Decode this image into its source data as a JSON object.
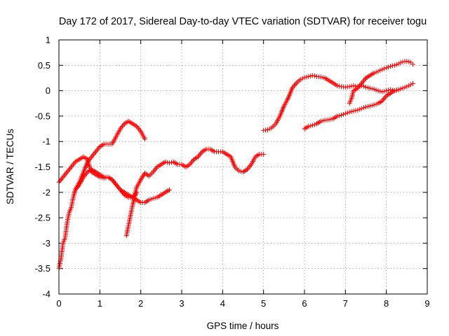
{
  "chart_data": {
    "type": "scatter",
    "title": "Day 172 of 2017, Sidereal Day-to-day VTEC variation (SDTVAR) for receiver togu",
    "xlabel": "GPS time / hours",
    "ylabel": "SDTVAR / TECUs",
    "xlim": [
      0,
      9
    ],
    "ylim": [
      -4,
      1
    ],
    "x_ticks": [
      0,
      1,
      2,
      3,
      4,
      5,
      6,
      7,
      8,
      9
    ],
    "x_tick_labels": [
      "0",
      "1",
      "2",
      "3",
      "4",
      "5",
      "6",
      "7",
      "8",
      "9"
    ],
    "y_ticks": [
      1,
      0.5,
      0,
      -0.5,
      -1,
      -1.5,
      -2,
      -2.5,
      -3,
      -3.5,
      -4
    ],
    "y_tick_labels": [
      "1",
      "0.5",
      "0",
      "-0.5",
      "-1",
      "-1.5",
      "-2",
      "-2.5",
      "-3",
      "-3.5",
      "-4"
    ],
    "grid": true,
    "marker": "plus",
    "color": "#ff0000",
    "series": [
      {
        "points": [
          [
            0.0,
            -1.8
          ],
          [
            0.1,
            -1.7
          ],
          [
            0.2,
            -1.6
          ],
          [
            0.3,
            -1.5
          ],
          [
            0.4,
            -1.4
          ],
          [
            0.5,
            -1.35
          ],
          [
            0.6,
            -1.3
          ],
          [
            0.7,
            -1.35
          ],
          [
            0.75,
            -1.5
          ],
          [
            0.8,
            -1.6
          ],
          [
            0.9,
            -1.65
          ],
          [
            1.0,
            -1.7
          ],
          [
            1.1,
            -1.72
          ],
          [
            1.2,
            -1.7
          ],
          [
            1.3,
            -1.75
          ],
          [
            1.4,
            -1.85
          ],
          [
            1.5,
            -1.95
          ],
          [
            1.6,
            -2.05
          ],
          [
            1.7,
            -2.1
          ],
          [
            1.8,
            -2.1
          ],
          [
            1.85,
            -2.05
          ],
          [
            1.9,
            -1.9
          ],
          [
            2.0,
            -1.75
          ],
          [
            2.1,
            -1.62
          ],
          [
            2.2,
            -1.68
          ],
          [
            2.3,
            -1.6
          ],
          [
            2.4,
            -1.5
          ],
          [
            2.5,
            -1.45
          ],
          [
            2.6,
            -1.4
          ],
          [
            2.7,
            -1.42
          ],
          [
            2.8,
            -1.4
          ],
          [
            2.9,
            -1.45
          ],
          [
            3.0,
            -1.45
          ],
          [
            3.1,
            -1.5
          ],
          [
            3.2,
            -1.45
          ],
          [
            3.3,
            -1.35
          ],
          [
            3.4,
            -1.3
          ],
          [
            3.5,
            -1.2
          ],
          [
            3.6,
            -1.15
          ],
          [
            3.7,
            -1.15
          ],
          [
            3.8,
            -1.2
          ],
          [
            3.9,
            -1.2
          ],
          [
            4.0,
            -1.2
          ],
          [
            4.1,
            -1.25
          ],
          [
            4.2,
            -1.3
          ],
          [
            4.3,
            -1.5
          ],
          [
            4.4,
            -1.58
          ],
          [
            4.5,
            -1.6
          ],
          [
            4.6,
            -1.55
          ],
          [
            4.7,
            -1.45
          ],
          [
            4.8,
            -1.3
          ],
          [
            4.9,
            -1.25
          ],
          [
            5.0,
            -1.25
          ]
        ]
      },
      {
        "points": [
          [
            0.0,
            -3.5
          ],
          [
            0.05,
            -3.3
          ],
          [
            0.1,
            -3.0
          ],
          [
            0.15,
            -2.9
          ],
          [
            0.2,
            -2.6
          ],
          [
            0.25,
            -2.4
          ],
          [
            0.3,
            -2.3
          ],
          [
            0.35,
            -2.1
          ],
          [
            0.4,
            -1.95
          ],
          [
            0.5,
            -1.8
          ],
          [
            0.6,
            -1.6
          ],
          [
            0.7,
            -1.4
          ],
          [
            0.8,
            -1.3
          ],
          [
            0.9,
            -1.2
          ],
          [
            1.0,
            -1.1
          ],
          [
            1.1,
            -1.05
          ],
          [
            1.2,
            -1.05
          ],
          [
            1.3,
            -1.05
          ],
          [
            1.4,
            -0.9
          ],
          [
            1.5,
            -0.75
          ],
          [
            1.6,
            -0.65
          ],
          [
            1.7,
            -0.6
          ],
          [
            1.8,
            -0.65
          ],
          [
            1.9,
            -0.7
          ],
          [
            2.0,
            -0.8
          ],
          [
            2.1,
            -0.95
          ]
        ]
      },
      {
        "points": [
          [
            0.4,
            -1.95
          ],
          [
            0.5,
            -1.85
          ],
          [
            0.6,
            -1.7
          ],
          [
            0.7,
            -1.6
          ],
          [
            0.8,
            -1.55
          ],
          [
            0.9,
            -1.6
          ],
          [
            1.0,
            -1.65
          ],
          [
            1.1,
            -1.7
          ],
          [
            1.2,
            -1.7
          ],
          [
            1.3,
            -1.75
          ],
          [
            1.4,
            -1.85
          ],
          [
            1.5,
            -1.95
          ],
          [
            1.6,
            -2.0
          ],
          [
            1.7,
            -2.05
          ],
          [
            1.8,
            -2.1
          ],
          [
            1.9,
            -2.15
          ],
          [
            2.0,
            -2.2
          ],
          [
            2.1,
            -2.2
          ],
          [
            2.2,
            -2.15
          ],
          [
            2.3,
            -2.12
          ],
          [
            2.4,
            -2.1
          ],
          [
            2.5,
            -2.05
          ],
          [
            2.6,
            -2.0
          ],
          [
            2.7,
            -1.95
          ]
        ]
      },
      {
        "points": [
          [
            1.65,
            -2.85
          ],
          [
            1.7,
            -2.65
          ],
          [
            1.75,
            -2.45
          ],
          [
            1.8,
            -2.25
          ],
          [
            1.85,
            -2.1
          ],
          [
            1.9,
            -2.0
          ]
        ]
      },
      {
        "points": [
          [
            5.0,
            -0.78
          ],
          [
            5.1,
            -0.77
          ],
          [
            5.2,
            -0.73
          ],
          [
            5.3,
            -0.65
          ],
          [
            5.4,
            -0.5
          ],
          [
            5.5,
            -0.3
          ],
          [
            5.6,
            -0.15
          ],
          [
            5.7,
            0.05
          ],
          [
            5.8,
            0.15
          ],
          [
            5.9,
            0.22
          ],
          [
            6.0,
            0.26
          ],
          [
            6.1,
            0.28
          ],
          [
            6.2,
            0.3
          ],
          [
            6.3,
            0.28
          ],
          [
            6.4,
            0.27
          ],
          [
            6.5,
            0.25
          ],
          [
            6.6,
            0.2
          ],
          [
            6.7,
            0.15
          ],
          [
            6.8,
            0.1
          ],
          [
            6.9,
            0.08
          ],
          [
            7.0,
            0.07
          ],
          [
            7.1,
            0.08
          ],
          [
            7.2,
            0.1
          ],
          [
            7.3,
            0.08
          ],
          [
            7.4,
            0.1
          ],
          [
            7.5,
            0.07
          ],
          [
            7.6,
            0.05
          ],
          [
            7.7,
            0.03
          ],
          [
            7.8,
            0.0
          ],
          [
            7.9,
            -0.02
          ],
          [
            8.0,
            0.0
          ],
          [
            8.1,
            0.02
          ],
          [
            8.2,
            0.0
          ],
          [
            8.3,
            0.02
          ],
          [
            8.4,
            0.05
          ],
          [
            8.5,
            0.08
          ],
          [
            8.6,
            0.12
          ],
          [
            8.65,
            0.14
          ]
        ]
      },
      {
        "points": [
          [
            6.0,
            -0.75
          ],
          [
            6.1,
            -0.7
          ],
          [
            6.2,
            -0.68
          ],
          [
            6.3,
            -0.65
          ],
          [
            6.4,
            -0.6
          ],
          [
            6.5,
            -0.58
          ],
          [
            6.6,
            -0.57
          ],
          [
            6.7,
            -0.55
          ],
          [
            6.8,
            -0.5
          ],
          [
            6.9,
            -0.48
          ],
          [
            7.0,
            -0.45
          ],
          [
            7.1,
            -0.42
          ],
          [
            7.2,
            -0.4
          ],
          [
            7.3,
            -0.38
          ],
          [
            7.4,
            -0.35
          ],
          [
            7.5,
            -0.32
          ],
          [
            7.6,
            -0.3
          ],
          [
            7.7,
            -0.28
          ],
          [
            7.8,
            -0.25
          ],
          [
            7.9,
            -0.2
          ],
          [
            8.0,
            -0.1
          ],
          [
            8.1,
            -0.05
          ],
          [
            8.2,
            0.0
          ],
          [
            8.3,
            0.02
          ]
        ]
      },
      {
        "points": [
          [
            7.1,
            -0.25
          ],
          [
            7.15,
            -0.15
          ],
          [
            7.2,
            0.0
          ],
          [
            7.3,
            0.05
          ],
          [
            7.4,
            0.15
          ],
          [
            7.5,
            0.25
          ],
          [
            7.6,
            0.3
          ],
          [
            7.7,
            0.35
          ],
          [
            7.8,
            0.38
          ],
          [
            7.9,
            0.42
          ],
          [
            8.0,
            0.45
          ],
          [
            8.1,
            0.48
          ],
          [
            8.2,
            0.5
          ],
          [
            8.3,
            0.53
          ],
          [
            8.4,
            0.57
          ],
          [
            8.5,
            0.58
          ],
          [
            8.6,
            0.56
          ],
          [
            8.65,
            0.52
          ]
        ]
      }
    ]
  }
}
